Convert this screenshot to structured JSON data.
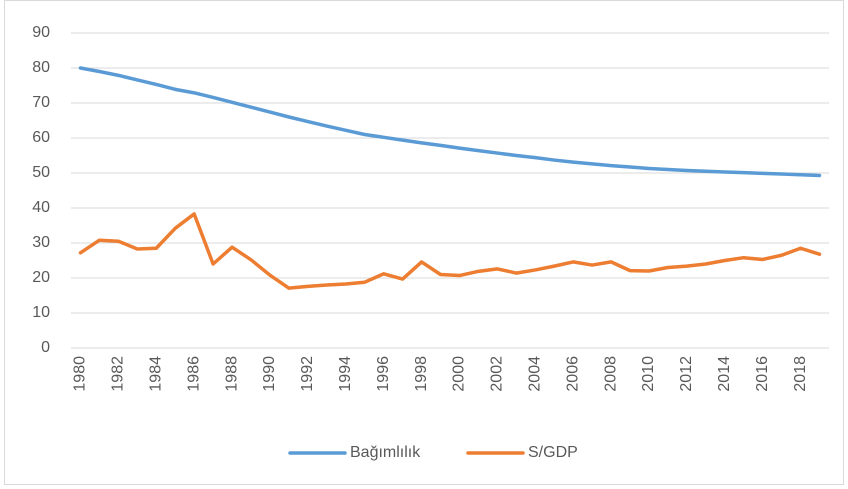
{
  "chart_data": {
    "type": "line",
    "categories": [
      "1980",
      null,
      "1982",
      null,
      "1984",
      null,
      "1986",
      null,
      "1988",
      null,
      "1990",
      null,
      "1992",
      null,
      "1994",
      null,
      "1996",
      null,
      "1998",
      null,
      "2000",
      null,
      "2002",
      null,
      "2004",
      null,
      "2006",
      null,
      "2008",
      null,
      "2010",
      null,
      "2012",
      null,
      "2014",
      null,
      "2016",
      null,
      "2018",
      null
    ],
    "series": [
      {
        "name": "Bağımlılık",
        "color": "#5b9bd5",
        "values": [
          80,
          79,
          77.9,
          76.6,
          75.3,
          73.9,
          72.9,
          71.6,
          70.2,
          68.8,
          67.4,
          66.0,
          64.7,
          63.4,
          62.2,
          61.0,
          60.2,
          59.4,
          58.6,
          57.9,
          57.1,
          56.4,
          55.7,
          55.0,
          54.4,
          53.7,
          53.1,
          52.6,
          52.1,
          51.7,
          51.3,
          51.0,
          50.7,
          50.5,
          50.3,
          50.1,
          49.9,
          49.7,
          49.5,
          49.3
        ]
      },
      {
        "name": "S/GDP",
        "color": "#ed7d31",
        "values": [
          27.2,
          30.8,
          30.5,
          28.3,
          28.5,
          34.2,
          38.3,
          24.0,
          28.8,
          25.2,
          20.8,
          17.1,
          17.6,
          18.0,
          18.3,
          18.8,
          21.2,
          19.7,
          24.6,
          21.0,
          20.7,
          21.9,
          22.6,
          21.4,
          22.3,
          23.4,
          24.6,
          23.7,
          24.6,
          22.1,
          22.0,
          23.0,
          23.4,
          24.0,
          25.0,
          25.8,
          25.3,
          26.5,
          28.5,
          26.8
        ]
      }
    ],
    "ylim": [
      0,
      90
    ],
    "yticks": [
      0,
      10,
      20,
      30,
      40,
      50,
      60,
      70,
      80,
      90
    ],
    "grid": true,
    "legend": "bottom"
  }
}
